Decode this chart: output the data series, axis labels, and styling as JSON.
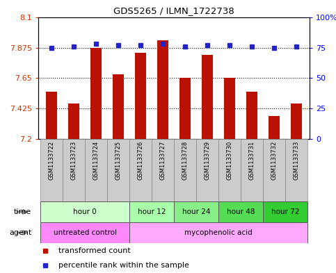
{
  "title": "GDS5265 / ILMN_1722738",
  "samples": [
    "GSM1133722",
    "GSM1133723",
    "GSM1133724",
    "GSM1133725",
    "GSM1133726",
    "GSM1133727",
    "GSM1133728",
    "GSM1133729",
    "GSM1133730",
    "GSM1133731",
    "GSM1133732",
    "GSM1133733"
  ],
  "bar_values": [
    7.55,
    7.46,
    7.875,
    7.68,
    7.84,
    7.93,
    7.655,
    7.82,
    7.655,
    7.55,
    7.37,
    7.46
  ],
  "percentile_values": [
    75,
    76,
    78,
    77,
    77,
    78,
    76,
    77,
    77,
    76,
    75,
    76
  ],
  "bar_color": "#BB1100",
  "percentile_color": "#2222CC",
  "ylim_left": [
    7.2,
    8.1
  ],
  "ylim_right": [
    0,
    100
  ],
  "yticks_left": [
    7.2,
    7.425,
    7.65,
    7.875,
    8.1
  ],
  "ytick_labels_left": [
    "7.2",
    "7.425",
    "7.65",
    "7.875",
    "8.1"
  ],
  "yticks_right": [
    0,
    25,
    50,
    75,
    100
  ],
  "ytick_labels_right": [
    "0",
    "25",
    "50",
    "75",
    "100%"
  ],
  "hlines": [
    7.425,
    7.65,
    7.875
  ],
  "time_groups": [
    {
      "label": "hour 0",
      "start": 0,
      "end": 3,
      "color": "#ccffcc"
    },
    {
      "label": "hour 12",
      "start": 4,
      "end": 5,
      "color": "#aaffaa"
    },
    {
      "label": "hour 24",
      "start": 6,
      "end": 7,
      "color": "#88ee88"
    },
    {
      "label": "hour 48",
      "start": 8,
      "end": 9,
      "color": "#55dd55"
    },
    {
      "label": "hour 72",
      "start": 10,
      "end": 11,
      "color": "#33cc33"
    }
  ],
  "agent_groups": [
    {
      "label": "untreated control",
      "start": 0,
      "end": 3,
      "color": "#ff88ff"
    },
    {
      "label": "mycophenolic acid",
      "start": 4,
      "end": 11,
      "color": "#ffaaff"
    }
  ],
  "legend_bar_label": "transformed count",
  "legend_pct_label": "percentile rank within the sample",
  "sample_box_color": "#cccccc",
  "sample_box_edge": "#888888",
  "background_color": "#ffffff"
}
